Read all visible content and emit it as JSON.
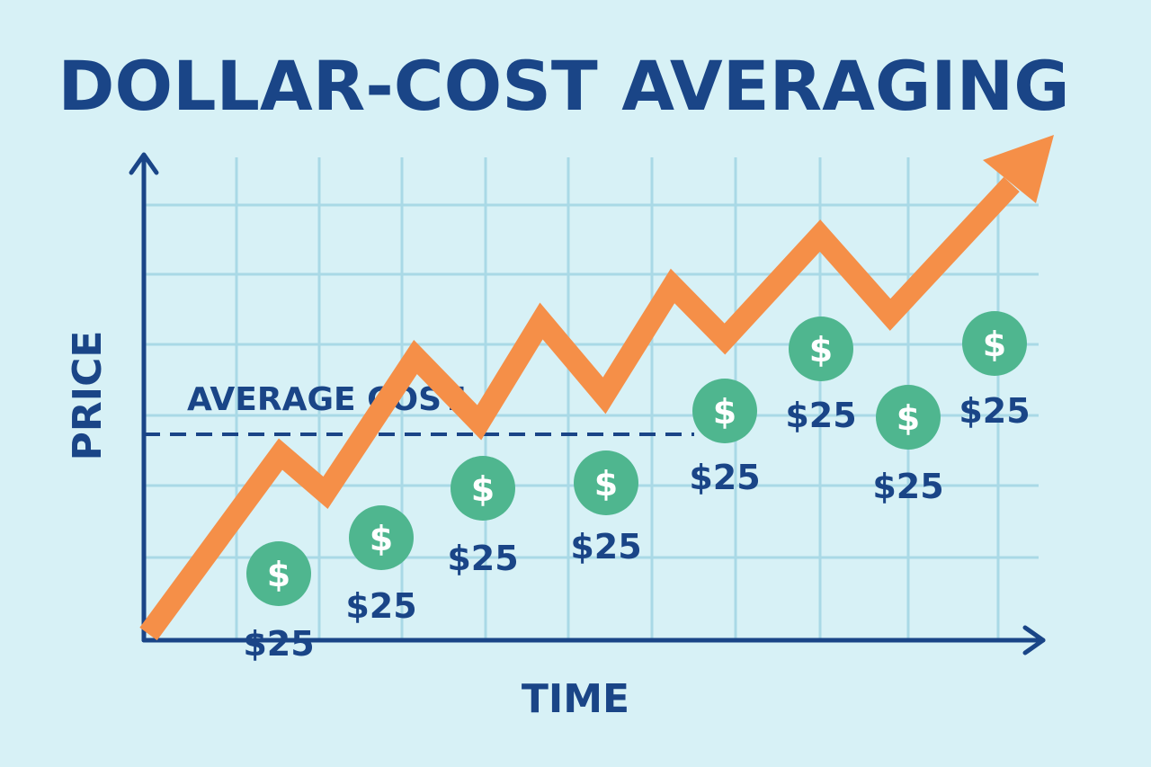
{
  "title": "DOLLAR-COST AVERAGING",
  "y_axis_label": "PRICE",
  "x_axis_label": "TIME",
  "average_line_label": "AVERAGE COST",
  "purchases": [
    {
      "icon": "$",
      "amount": "$25"
    },
    {
      "icon": "$",
      "amount": "$25"
    },
    {
      "icon": "$",
      "amount": "$25"
    },
    {
      "icon": "$",
      "amount": "$25"
    },
    {
      "icon": "$",
      "amount": "$25"
    },
    {
      "icon": "$",
      "amount": "$25"
    },
    {
      "icon": "$",
      "amount": "$25"
    },
    {
      "icon": "$",
      "amount": "$25"
    }
  ]
}
